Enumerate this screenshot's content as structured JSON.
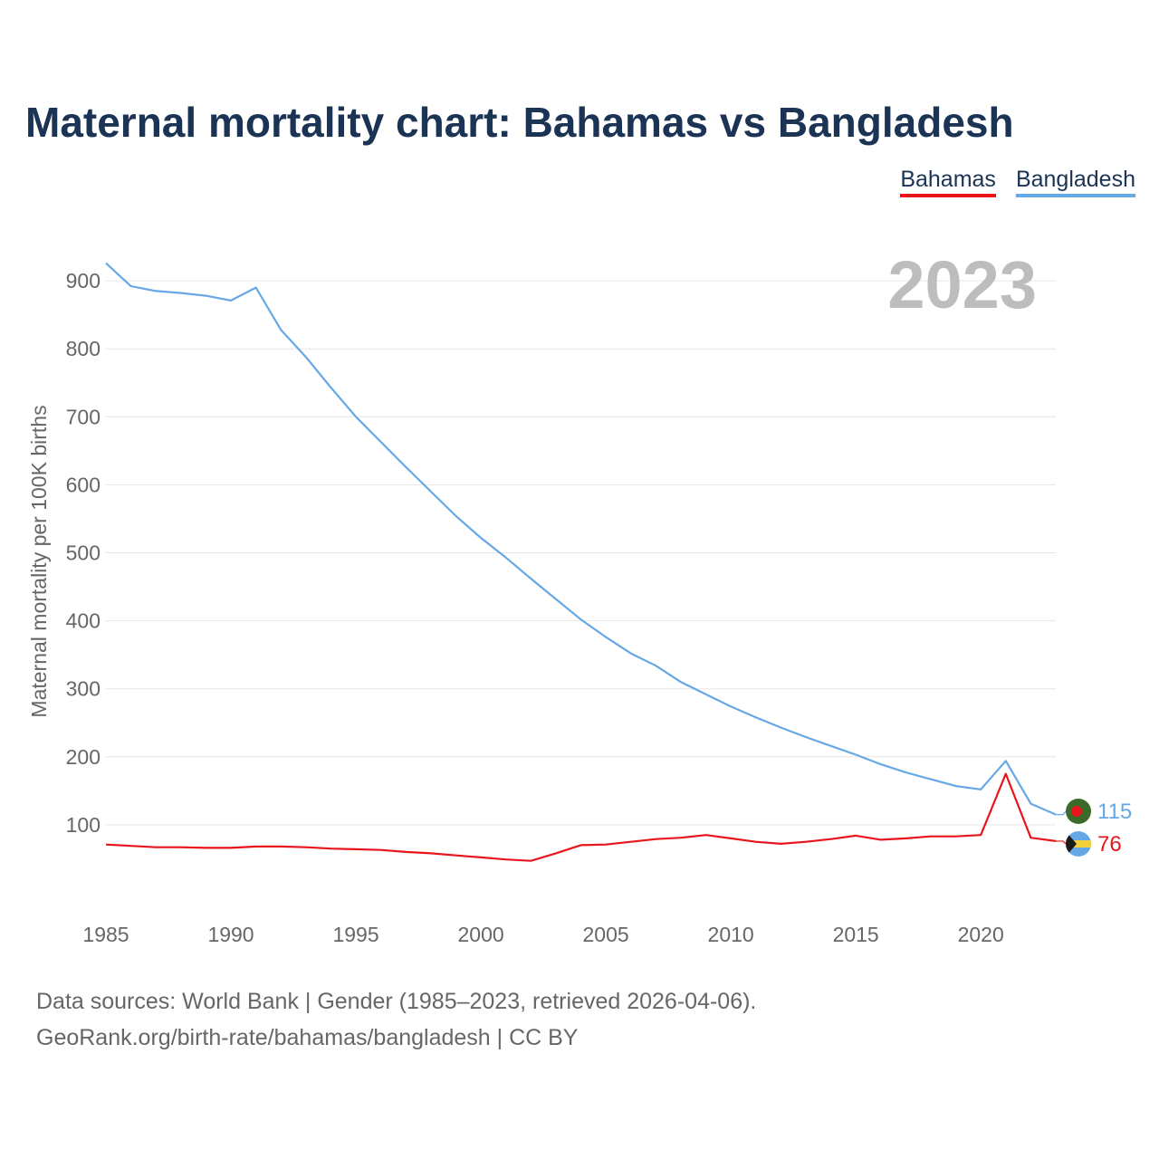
{
  "chart_data": {
    "type": "line",
    "title": "Maternal mortality chart: Bahamas vs Bangladesh",
    "ylabel": "Maternal mortality per 100K births",
    "xlabel": "",
    "year_label": "2023",
    "xlim": [
      1985,
      2023
    ],
    "ylim": [
      0,
      1000
    ],
    "x_ticks": [
      1985,
      1990,
      1995,
      2000,
      2005,
      2010,
      2015,
      2020
    ],
    "y_ticks": [
      100,
      200,
      300,
      400,
      500,
      600,
      700,
      800,
      900
    ],
    "grid": true,
    "legend_position": "top-right",
    "x": [
      1985,
      1986,
      1987,
      1988,
      1989,
      1990,
      1991,
      1992,
      1993,
      1994,
      1995,
      1996,
      1997,
      1998,
      1999,
      2000,
      2001,
      2002,
      2003,
      2004,
      2005,
      2006,
      2007,
      2008,
      2009,
      2010,
      2011,
      2012,
      2013,
      2014,
      2015,
      2016,
      2017,
      2018,
      2019,
      2020,
      2021,
      2022,
      2023
    ],
    "series": [
      {
        "name": "Bahamas",
        "color": "#e8161c",
        "end_label": "76",
        "flag": "bahamas-flag",
        "values": [
          71,
          69,
          67,
          67,
          66,
          66,
          68,
          68,
          67,
          65,
          64,
          63,
          60,
          58,
          55,
          52,
          49,
          47,
          58,
          70,
          71,
          75,
          79,
          81,
          85,
          80,
          75,
          72,
          75,
          79,
          84,
          78,
          80,
          83,
          83,
          85,
          175,
          81,
          76
        ]
      },
      {
        "name": "Bangladesh",
        "color": "#66a8e5",
        "end_label": "115",
        "flag": "bangladesh-flag",
        "values": [
          926,
          892,
          885,
          882,
          878,
          871,
          890,
          828,
          788,
          743,
          700,
          663,
          626,
          590,
          554,
          522,
          493,
          462,
          432,
          402,
          376,
          352,
          334,
          310,
          292,
          274,
          258,
          243,
          229,
          216,
          203,
          189,
          177,
          167,
          157,
          152,
          194,
          131,
          115
        ]
      }
    ]
  },
  "footer": {
    "line1": "Data sources: World Bank | Gender (1985–2023, retrieved 2026-04-06).",
    "line2": "GeoRank.org/birth-rate/bahamas/bangladesh | CC BY"
  }
}
